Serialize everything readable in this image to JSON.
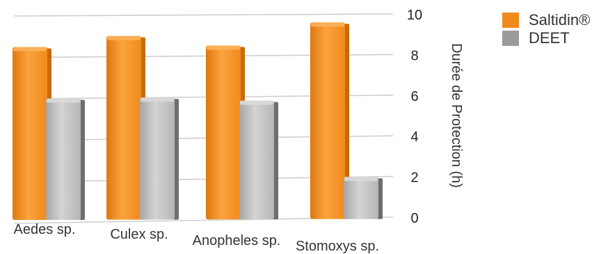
{
  "chart_data": {
    "type": "bar",
    "title": "",
    "xlabel": "",
    "ylabel": "Durée de Protection (h)",
    "categories": [
      "Aedes sp.",
      "Culex sp.",
      "Anopheles sp.",
      "Stomoxys sp."
    ],
    "series": [
      {
        "name": "Saltidin®",
        "values": [
          8.5,
          9,
          8.5,
          9.6
        ],
        "color": "#f08a1c"
      },
      {
        "name": "DEET",
        "values": [
          6,
          6,
          5.8,
          2
        ],
        "color": "#9a9a9a"
      }
    ],
    "ylim": [
      0,
      10
    ],
    "yticks": [
      "0",
      "2",
      "4",
      "6",
      "8",
      "10"
    ],
    "grid": true,
    "legend_position": "top-right"
  }
}
